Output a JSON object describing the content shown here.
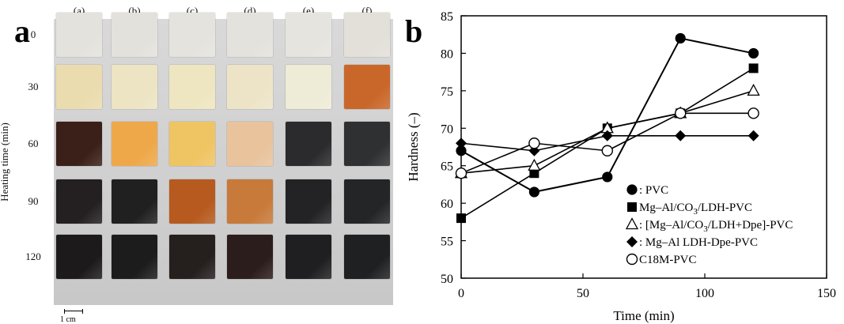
{
  "panel_a": {
    "letter": "a",
    "y_label": "Heating time (min)",
    "columns": [
      "(a)",
      "(b)",
      "(c)",
      "(d)",
      "(e)",
      "(f)"
    ],
    "rows": [
      "0",
      "30",
      "60",
      "90",
      "120"
    ],
    "scale_label": "1 cm",
    "sample_colors": [
      [
        "#e4e2dd",
        "#e3e1dc",
        "#e5e3de",
        "#e4e2dc",
        "#e6e4df",
        "#e2e0d8"
      ],
      [
        "#eadcae",
        "#ece4c2",
        "#eee6c0",
        "#ede4c8",
        "#eeebd7",
        "#c9672a"
      ],
      [
        "#3a2018",
        "#eea84a",
        "#efc463",
        "#e8c39c",
        "#2b2a2c",
        "#2e3031"
      ],
      [
        "#241f20",
        "#202020",
        "#b65a1f",
        "#c77a3a",
        "#232325",
        "#232527"
      ],
      [
        "#1c1a1b",
        "#1d1c1c",
        "#251f1e",
        "#2b1d1b",
        "#1f1f21",
        "#1e2022"
      ]
    ]
  },
  "panel_b": {
    "letter": "b",
    "chart_data": {
      "type": "line",
      "xlabel": "Time (min)",
      "ylabel": "Hardness (–)",
      "xlim": [
        0,
        150
      ],
      "ylim": [
        50,
        85
      ],
      "xticks": [
        0,
        50,
        100,
        150
      ],
      "yticks": [
        50,
        55,
        60,
        65,
        70,
        75,
        80,
        85
      ],
      "x": [
        0,
        30,
        60,
        90,
        120
      ],
      "series": [
        {
          "name": "PVC",
          "marker": "filled-circle",
          "values": [
            67,
            61.5,
            63.5,
            82,
            80
          ]
        },
        {
          "name": "Mg–Al/CO3/LDH-PVC",
          "marker": "filled-square",
          "values": [
            58,
            64,
            70,
            72,
            78
          ]
        },
        {
          "name": "[Mg–Al/CO3/LDH+Dpe]-PVC",
          "marker": "open-triangle",
          "values": [
            64,
            65,
            70,
            72,
            75
          ]
        },
        {
          "name": "Mg–Al LDH-Dpe-PVC",
          "marker": "filled-diamond",
          "values": [
            68,
            67,
            69,
            69,
            69
          ]
        },
        {
          "name": "C18M-PVC",
          "marker": "open-circle",
          "values": [
            64,
            68,
            67,
            72,
            72
          ]
        }
      ],
      "legend": {
        "position": "lower-right",
        "entries": [
          {
            "prefix": ": ",
            "text": "PVC"
          },
          {
            "prefix": " ",
            "text": "Mg–Al/CO",
            "sub": "3",
            "suffix": "/LDH-PVC"
          },
          {
            "prefix": ": ",
            "text": "[Mg–Al/CO",
            "sub": "3",
            "suffix": "/LDH+Dpe]-PVC"
          },
          {
            "prefix": ": ",
            "text": "Mg–Al LDH-Dpe-PVC"
          },
          {
            "prefix": " ",
            "text": "C18M-PVC"
          }
        ]
      }
    }
  }
}
